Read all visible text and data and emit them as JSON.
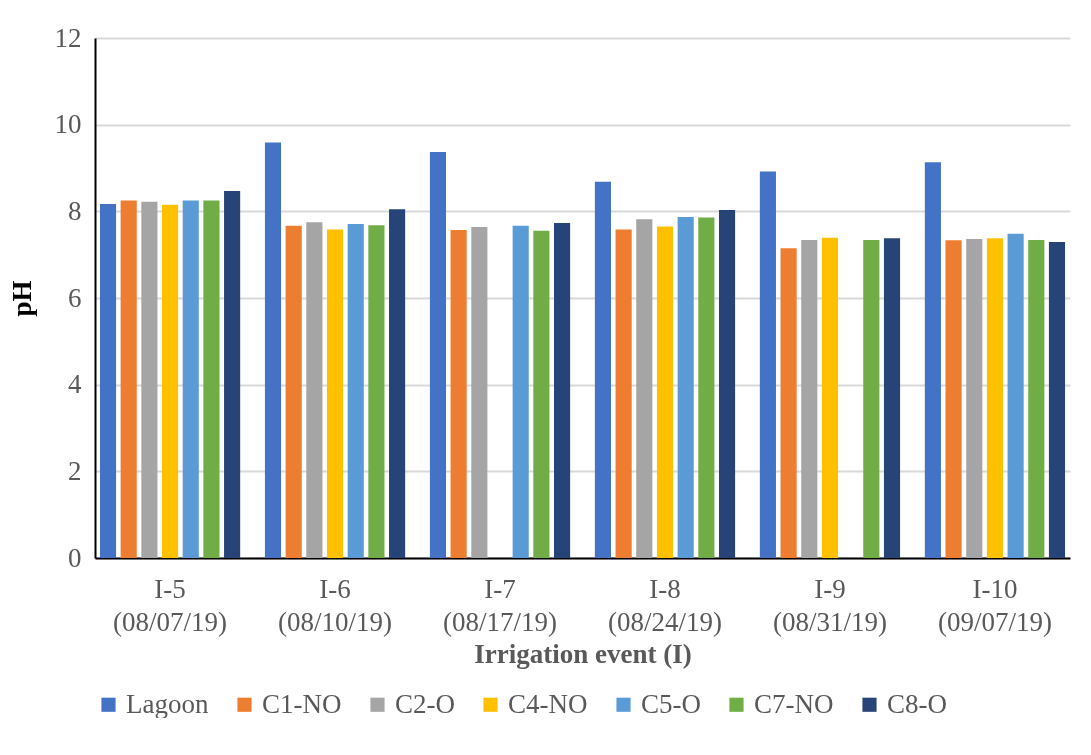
{
  "chart_data": {
    "type": "bar",
    "xlabel": "Irrigation event (I)",
    "ylabel": "pH",
    "categories": [
      "I-5\n(08/07/19)",
      "I-6\n(08/10/19)",
      "I-7\n(08/17/19)",
      "I-8\n(08/24/19)",
      "I-9\n(08/31/19)",
      "I-10\n(09/07/19)"
    ],
    "series": [
      {
        "name": "Lagoon",
        "color": "#4472c4",
        "values": [
          8.17,
          9.59,
          9.37,
          8.68,
          8.92,
          9.13
        ]
      },
      {
        "name": "C1-NO",
        "color": "#ed7d31",
        "values": [
          8.25,
          7.67,
          7.57,
          7.58,
          7.15,
          7.33
        ]
      },
      {
        "name": "C2-O",
        "color": "#a5a5a5",
        "values": [
          8.22,
          7.75,
          7.64,
          7.82,
          7.34,
          7.36
        ]
      },
      {
        "name": "C4-NO",
        "color": "#ffc000",
        "values": [
          8.15,
          7.58,
          null,
          7.65,
          7.39,
          7.38
        ]
      },
      {
        "name": "C5-O",
        "color": "#5b9bd5",
        "values": [
          8.25,
          7.71,
          7.67,
          7.87,
          null,
          7.48
        ]
      },
      {
        "name": "C7-NO",
        "color": "#70ad47",
        "values": [
          8.25,
          7.68,
          7.55,
          7.86,
          7.34,
          7.34
        ]
      },
      {
        "name": "C8-O",
        "color": "#264478",
        "values": [
          8.47,
          8.05,
          7.73,
          8.03,
          7.38,
          7.29
        ]
      }
    ],
    "ylim": [
      0,
      12
    ],
    "yticks": [
      0,
      2,
      4,
      6,
      8,
      10,
      12
    ],
    "grid": "y",
    "legend": "bottom"
  }
}
